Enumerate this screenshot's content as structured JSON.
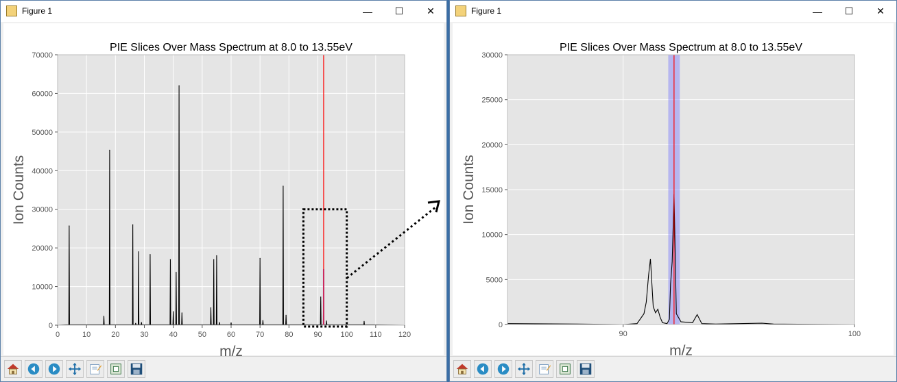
{
  "windows": [
    {
      "title": "Figure 1"
    },
    {
      "title": "Figure 1"
    }
  ],
  "window_controls": {
    "minimize": "—",
    "maximize": "☐",
    "close": "✕"
  },
  "toolbar": [
    {
      "icon": "home-icon"
    },
    {
      "icon": "back-icon"
    },
    {
      "icon": "forward-icon"
    },
    {
      "icon": "pan-icon"
    },
    {
      "icon": "configure-subplots-icon"
    },
    {
      "icon": "zoom-to-rect-icon"
    },
    {
      "icon": "save-icon"
    }
  ],
  "chart_data": [
    {
      "type": "line",
      "title": "PIE Slices Over Mass Spectrum at 8.0 to 13.55eV",
      "xlabel": "m/z",
      "ylabel": "Ion Counts",
      "xlim": [
        0,
        120
      ],
      "ylim": [
        0,
        70000
      ],
      "xticks": [
        0,
        10,
        20,
        30,
        40,
        50,
        60,
        70,
        80,
        90,
        100,
        110,
        120
      ],
      "yticks": [
        0,
        10000,
        20000,
        30000,
        40000,
        50000,
        60000,
        70000
      ],
      "grid": true,
      "background": "#e5e5e5",
      "line_color": "#000000",
      "peaks": [
        {
          "x": 4,
          "y": 25700
        },
        {
          "x": 16,
          "y": 2300
        },
        {
          "x": 18,
          "y": 45300
        },
        {
          "x": 26,
          "y": 26000
        },
        {
          "x": 27,
          "y": 500
        },
        {
          "x": 28,
          "y": 19000
        },
        {
          "x": 29,
          "y": 700
        },
        {
          "x": 32,
          "y": 18300
        },
        {
          "x": 39,
          "y": 17000
        },
        {
          "x": 40,
          "y": 3500
        },
        {
          "x": 41,
          "y": 13700
        },
        {
          "x": 42,
          "y": 62000
        },
        {
          "x": 43,
          "y": 3200
        },
        {
          "x": 53,
          "y": 4500
        },
        {
          "x": 54,
          "y": 17000
        },
        {
          "x": 55,
          "y": 18000
        },
        {
          "x": 56,
          "y": 700
        },
        {
          "x": 60,
          "y": 600
        },
        {
          "x": 70,
          "y": 17300
        },
        {
          "x": 71,
          "y": 1200
        },
        {
          "x": 78,
          "y": 36000
        },
        {
          "x": 79,
          "y": 2600
        },
        {
          "x": 91,
          "y": 7300
        },
        {
          "x": 92,
          "y": 14500
        },
        {
          "x": 93,
          "y": 1100
        },
        {
          "x": 106,
          "y": 1000
        }
      ],
      "selection": {
        "x": 92,
        "y_top": 14500,
        "line_color": "#ff0000",
        "shade_color": "#7070ff"
      },
      "annotation": {
        "type": "dotted-box",
        "x_range": [
          85,
          100
        ],
        "y_range": [
          0,
          30000
        ]
      }
    },
    {
      "type": "line",
      "title": "PIE Slices Over Mass Spectrum at 8.0 to 13.55eV",
      "xlabel": "m/z",
      "ylabel": "Ion Counts",
      "xlim": [
        85,
        100
      ],
      "ylim": [
        0,
        30000
      ],
      "xticks": [
        90,
        100
      ],
      "yticks": [
        0,
        5000,
        10000,
        15000,
        20000,
        25000,
        30000
      ],
      "grid": true,
      "background": "#e5e5e5",
      "line_color": "#000000",
      "points": [
        {
          "x": 85.0,
          "y": 100
        },
        {
          "x": 88.0,
          "y": 50
        },
        {
          "x": 90.0,
          "y": 0
        },
        {
          "x": 90.6,
          "y": 100
        },
        {
          "x": 90.9,
          "y": 1200
        },
        {
          "x": 91.0,
          "y": 2500
        },
        {
          "x": 91.1,
          "y": 5500
        },
        {
          "x": 91.18,
          "y": 7300
        },
        {
          "x": 91.3,
          "y": 2000
        },
        {
          "x": 91.4,
          "y": 1300
        },
        {
          "x": 91.5,
          "y": 1700
        },
        {
          "x": 91.6,
          "y": 800
        },
        {
          "x": 91.7,
          "y": 200
        },
        {
          "x": 91.9,
          "y": 100
        },
        {
          "x": 92.0,
          "y": 600
        },
        {
          "x": 92.05,
          "y": 4500
        },
        {
          "x": 92.12,
          "y": 7000
        },
        {
          "x": 92.2,
          "y": 14500
        },
        {
          "x": 92.3,
          "y": 1200
        },
        {
          "x": 92.5,
          "y": 300
        },
        {
          "x": 93.0,
          "y": 200
        },
        {
          "x": 93.2,
          "y": 1100
        },
        {
          "x": 93.4,
          "y": 100
        },
        {
          "x": 94.0,
          "y": 50
        },
        {
          "x": 96.0,
          "y": 150
        },
        {
          "x": 96.5,
          "y": 50
        },
        {
          "x": 100.0,
          "y": 0
        }
      ],
      "selection": {
        "x": 92.2,
        "span": [
          91.95,
          92.45
        ],
        "line_color": "#ff0000",
        "shade_color": "#7070ff"
      }
    }
  ],
  "arrow_annotation": {
    "style": "dotted",
    "color": "#000000"
  }
}
